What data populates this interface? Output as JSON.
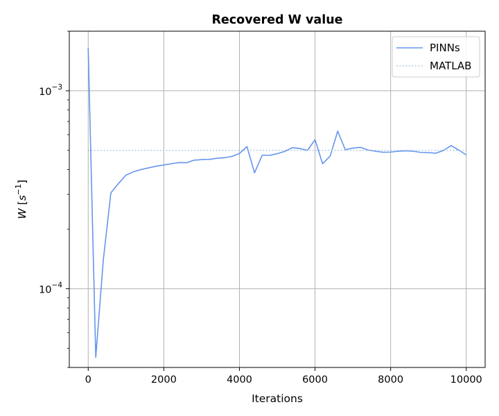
{
  "chart_data": {
    "type": "line",
    "title": "Recovered W value",
    "xlabel": "Iterations",
    "ylabel_base": "W",
    "ylabel_unit_base": "s",
    "ylabel_unit_exp": "−1",
    "xlim": [
      -500,
      10500
    ],
    "ylim": [
      4e-05,
      0.002
    ],
    "yscale": "log",
    "grid": true,
    "legend_position": "top-right",
    "x_ticks": [
      0,
      2000,
      4000,
      6000,
      8000,
      10000
    ],
    "x_tick_labels": [
      "0",
      "2000",
      "4000",
      "6000",
      "8000",
      "10000"
    ],
    "y_ticks": [
      {
        "value": 0.001,
        "base": "10",
        "exp": "−3"
      },
      {
        "value": 0.0001,
        "base": "10",
        "exp": "−4"
      }
    ],
    "series": [
      {
        "name": "PINNs",
        "style": "solid",
        "color": "#6495ED",
        "x": [
          0,
          200,
          400,
          600,
          800,
          1000,
          1200,
          1400,
          1600,
          1800,
          2000,
          2200,
          2400,
          2600,
          2800,
          3000,
          3200,
          3400,
          3600,
          3800,
          4000,
          4200,
          4400,
          4600,
          4800,
          5000,
          5200,
          5400,
          5600,
          5800,
          6000,
          6200,
          6400,
          6600,
          6800,
          7000,
          7200,
          7400,
          7600,
          7800,
          8000,
          8200,
          8400,
          8600,
          8800,
          9000,
          9200,
          9400,
          9600,
          9800,
          10000
        ],
        "y": [
          0.00165,
          4.5e-05,
          0.00014,
          0.000305,
          0.00034,
          0.000375,
          0.00039,
          0.0004,
          0.000408,
          0.000416,
          0.000422,
          0.000428,
          0.000434,
          0.000433,
          0.000446,
          0.000449,
          0.00045,
          0.000456,
          0.000459,
          0.000466,
          0.000482,
          0.000522,
          0.000385,
          0.000472,
          0.000472,
          0.000481,
          0.000494,
          0.000516,
          0.000511,
          0.0005,
          0.000566,
          0.000428,
          0.000468,
          0.000625,
          0.000504,
          0.000513,
          0.000518,
          0.000502,
          0.000495,
          0.000489,
          0.00049,
          0.000495,
          0.000497,
          0.000495,
          0.000488,
          0.000487,
          0.000484,
          0.0005,
          0.000528,
          0.000502,
          0.000474
        ]
      },
      {
        "name": "MATLAB",
        "style": "dotted",
        "color": "#9BBCE0",
        "x": [
          0,
          10000
        ],
        "y": [
          0.0005,
          0.0005
        ]
      }
    ]
  }
}
